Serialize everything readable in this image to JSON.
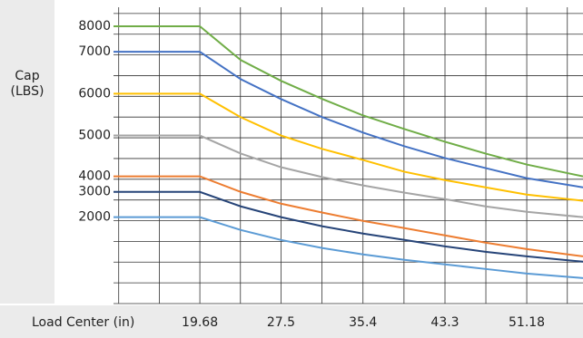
{
  "chart_data": {
    "type": "line",
    "y_label": "Cap (LBS)",
    "x_label": "Load Center (in)",
    "x": [
      11.36,
      19.68,
      23.62,
      27.5,
      31.5,
      35.4,
      39.4,
      43.3,
      47.2,
      51.18,
      56.6
    ],
    "xlim": [
      11.36,
      56.6
    ],
    "xticks": [
      19.68,
      27.5,
      35.4,
      43.3,
      51.18
    ],
    "ylim": [
      0,
      14.3
    ],
    "yticks": [
      0,
      1,
      2,
      3,
      4,
      5,
      6,
      7,
      8,
      9,
      10,
      11,
      12,
      13,
      14
    ],
    "grid": true,
    "series": [
      {
        "name": "8000",
        "color": "#70ad47",
        "values": [
          13.38,
          13.38,
          11.75,
          10.75,
          9.87,
          9.08,
          8.42,
          7.81,
          7.24,
          6.71,
          6.14
        ]
      },
      {
        "name": "7000",
        "color": "#4472c4",
        "values": [
          12.15,
          12.15,
          10.83,
          9.87,
          8.99,
          8.25,
          7.59,
          7.02,
          6.54,
          6.05,
          5.61
        ]
      },
      {
        "name": "6000",
        "color": "#ffc000",
        "values": [
          10.13,
          10.13,
          8.99,
          8.11,
          7.46,
          6.93,
          6.36,
          5.96,
          5.61,
          5.26,
          4.96
        ]
      },
      {
        "name": "5000",
        "color": "#a5a5a5",
        "values": [
          8.11,
          8.11,
          7.24,
          6.58,
          6.1,
          5.7,
          5.35,
          5.04,
          4.69,
          4.43,
          4.17
        ]
      },
      {
        "name": "4000",
        "color": "#ed7d31",
        "values": [
          6.14,
          6.14,
          5.39,
          4.82,
          4.39,
          3.99,
          3.64,
          3.29,
          2.94,
          2.63,
          2.28
        ]
      },
      {
        "name": "3000",
        "color": "#264478",
        "values": [
          5.39,
          5.39,
          4.69,
          4.17,
          3.73,
          3.38,
          3.07,
          2.76,
          2.5,
          2.28,
          2.02
        ]
      },
      {
        "name": "2000",
        "color": "#5b9bd5",
        "values": [
          4.17,
          4.17,
          3.55,
          3.07,
          2.68,
          2.37,
          2.11,
          1.89,
          1.67,
          1.45,
          1.23
        ]
      }
    ]
  }
}
